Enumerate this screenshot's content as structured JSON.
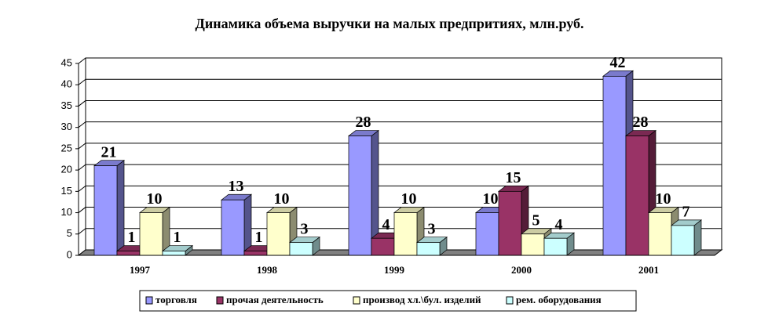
{
  "chart_data": {
    "type": "bar3d",
    "title": "Динамика объема выручки на малых предпритиях, млн.руб.",
    "categories": [
      "1997",
      "1998",
      "1999",
      "2000",
      "2001"
    ],
    "series": [
      {
        "name": "торговля",
        "color": "#9999ff",
        "values": [
          21,
          13,
          28,
          10,
          42
        ]
      },
      {
        "name": "прочая деятельность",
        "color": "#993366",
        "values": [
          1,
          1,
          4,
          15,
          28
        ]
      },
      {
        "name": "производ хл.\\бул. изделий",
        "color": "#ffffcc",
        "values": [
          10,
          10,
          10,
          5,
          10
        ]
      },
      {
        "name": "рем. оборудования",
        "color": "#ccffff",
        "values": [
          1,
          3,
          3,
          4,
          7
        ]
      }
    ],
    "ylim": [
      0,
      45
    ],
    "yticks": [
      0,
      5,
      10,
      15,
      20,
      25,
      30,
      35,
      40,
      45
    ],
    "grid": true,
    "legend": "bottom"
  }
}
